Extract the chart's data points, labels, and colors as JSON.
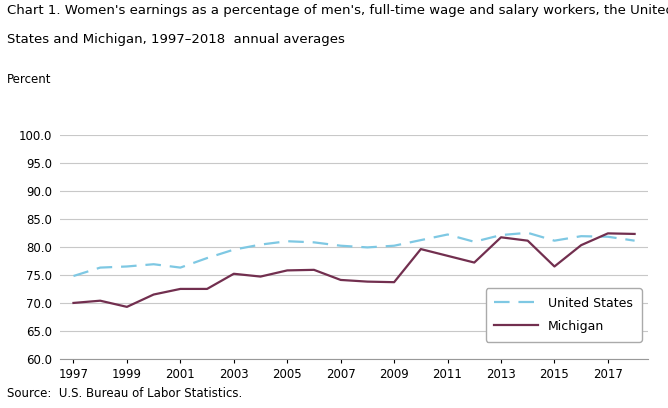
{
  "title_line1": "Chart 1. Women's earnings as a percentage of men's, full-time wage and salary workers, the United",
  "title_line2": "States and Michigan, 1997–2018  annual averages",
  "ylabel_text": "Percent",
  "source": "Source:  U.S. Bureau of Labor Statistics.",
  "years": [
    1997,
    1998,
    1999,
    2000,
    2001,
    2002,
    2003,
    2004,
    2005,
    2006,
    2007,
    2008,
    2009,
    2010,
    2011,
    2012,
    2013,
    2014,
    2015,
    2016,
    2017,
    2018
  ],
  "us_data": [
    74.8,
    76.3,
    76.5,
    76.9,
    76.3,
    78.0,
    79.5,
    80.4,
    81.0,
    80.8,
    80.2,
    79.9,
    80.2,
    81.2,
    82.2,
    80.9,
    82.1,
    82.5,
    81.1,
    81.9,
    81.8,
    81.1
  ],
  "mi_data": [
    70.0,
    70.4,
    69.3,
    71.5,
    72.5,
    72.5,
    75.2,
    74.7,
    75.8,
    75.9,
    74.1,
    73.8,
    73.7,
    79.6,
    78.4,
    77.2,
    81.7,
    81.1,
    76.5,
    80.3,
    82.4,
    82.3
  ],
  "us_color": "#7ec8e3",
  "mi_color": "#722F4F",
  "ylim": [
    60.0,
    100.0
  ],
  "yticks": [
    60.0,
    65.0,
    70.0,
    75.0,
    80.0,
    85.0,
    90.0,
    95.0,
    100.0
  ],
  "xticks": [
    1997,
    1999,
    2001,
    2003,
    2005,
    2007,
    2009,
    2011,
    2013,
    2015,
    2017
  ],
  "legend_us": "United States",
  "legend_mi": "Michigan",
  "bg_color": "#ffffff",
  "plot_bg": "#ffffff",
  "grid_color": "#c8c8c8",
  "title_fontsize": 9.5,
  "source_fontsize": 8.5,
  "tick_fontsize": 8.5,
  "legend_fontsize": 9
}
